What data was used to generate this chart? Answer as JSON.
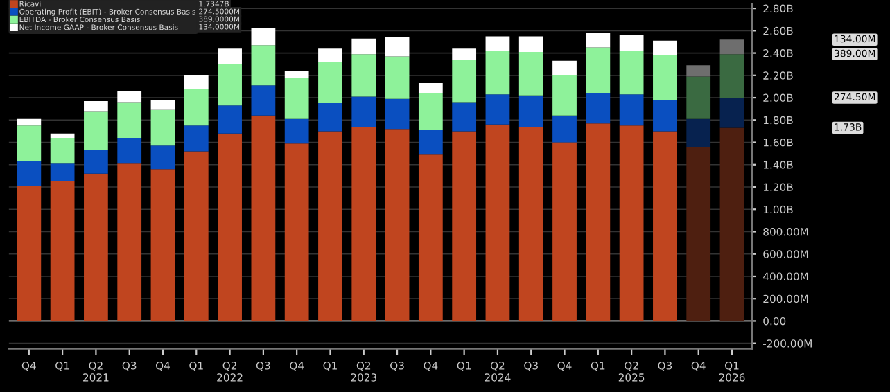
{
  "chart_data": {
    "type": "bar",
    "stacked": true,
    "legend": "top left",
    "grid": "y",
    "categories": [
      "Q4",
      "Q1",
      "Q2\n2021",
      "Q3",
      "Q4",
      "Q1",
      "Q2\n2022",
      "Q3",
      "Q4",
      "Q1",
      "Q2\n2023",
      "Q3",
      "Q4",
      "Q1",
      "Q2\n2024",
      "Q3",
      "Q4",
      "Q1",
      "Q2\n2025",
      "Q3",
      "Q4",
      "Q1\n2026"
    ],
    "series": [
      {
        "name": "Ricavi",
        "color": "#c0451f",
        "colors": [
          "#c0451f",
          "#c0451f",
          "#c0451f",
          "#c0451f",
          "#c0451f",
          "#c0451f",
          "#c0451f",
          "#c0451f",
          "#c0451f",
          "#c0451f",
          "#c0451f",
          "#c0451f",
          "#c0451f",
          "#c0451f",
          "#c0451f",
          "#c0451f",
          "#c0451f",
          "#c0451f",
          "#c0451f",
          "#c0451f",
          "#4e1f10",
          "#4e1f10"
        ],
        "values": [
          1210000000,
          1250000000,
          1320000000,
          1410000000,
          1360000000,
          1520000000,
          1680000000,
          1840000000,
          1590000000,
          1700000000,
          1740000000,
          1720000000,
          1490000000,
          1700000000,
          1760000000,
          1740000000,
          1600000000,
          1770000000,
          1750000000,
          1700000000,
          1560000000,
          1730000000
        ]
      },
      {
        "name": "Operating Profit (EBIT) - Broker Consensus Basis",
        "color": "#0a4fc0",
        "colors": [
          "#0a4fc0",
          "#0a4fc0",
          "#0a4fc0",
          "#0a4fc0",
          "#0a4fc0",
          "#0a4fc0",
          "#0a4fc0",
          "#0a4fc0",
          "#0a4fc0",
          "#0a4fc0",
          "#0a4fc0",
          "#0a4fc0",
          "#0a4fc0",
          "#0a4fc0",
          "#0a4fc0",
          "#0a4fc0",
          "#0a4fc0",
          "#0a4fc0",
          "#0a4fc0",
          "#0a4fc0",
          "#07224f",
          "#07224f"
        ],
        "values": [
          220000000,
          160000000,
          210000000,
          230000000,
          210000000,
          230000000,
          250000000,
          270000000,
          220000000,
          250000000,
          270000000,
          270000000,
          220000000,
          260000000,
          270000000,
          280000000,
          240000000,
          270000000,
          280000000,
          280000000,
          250000000,
          270000000
        ]
      },
      {
        "name": "EBITDA - Broker Consensus Basis",
        "color": "#8ef29a",
        "colors": [
          "#8ef29a",
          "#8ef29a",
          "#8ef29a",
          "#8ef29a",
          "#8ef29a",
          "#8ef29a",
          "#8ef29a",
          "#8ef29a",
          "#8ef29a",
          "#8ef29a",
          "#8ef29a",
          "#8ef29a",
          "#8ef29a",
          "#8ef29a",
          "#8ef29a",
          "#8ef29a",
          "#8ef29a",
          "#8ef29a",
          "#8ef29a",
          "#8ef29a",
          "#3a6a41",
          "#3a6a41"
        ],
        "values": [
          320000000,
          230000000,
          350000000,
          320000000,
          320000000,
          330000000,
          370000000,
          360000000,
          370000000,
          370000000,
          380000000,
          380000000,
          330000000,
          380000000,
          390000000,
          390000000,
          360000000,
          410000000,
          390000000,
          400000000,
          380000000,
          390000000
        ]
      },
      {
        "name": "Net Income GAAP - Broker Consensus Basis",
        "color": "#ffffff",
        "colors": [
          "#ffffff",
          "#ffffff",
          "#ffffff",
          "#ffffff",
          "#ffffff",
          "#ffffff",
          "#ffffff",
          "#ffffff",
          "#ffffff",
          "#ffffff",
          "#ffffff",
          "#ffffff",
          "#ffffff",
          "#ffffff",
          "#ffffff",
          "#ffffff",
          "#ffffff",
          "#ffffff",
          "#ffffff",
          "#ffffff",
          "#6e6e6e",
          "#6e6e6e"
        ],
        "values": [
          60000000,
          40000000,
          90000000,
          100000000,
          90000000,
          120000000,
          140000000,
          150000000,
          60000000,
          120000000,
          140000000,
          170000000,
          90000000,
          100000000,
          130000000,
          140000000,
          130000000,
          130000000,
          140000000,
          130000000,
          100000000,
          130000000
        ]
      }
    ],
    "ylim": [
      -250000000,
      2840000000
    ],
    "yticks": [
      {
        "value": 2800000000,
        "label": "2.80B"
      },
      {
        "value": 2600000000,
        "label": "2.60B"
      },
      {
        "value": 2400000000,
        "label": "2.40B"
      },
      {
        "value": 2200000000,
        "label": "2.20B"
      },
      {
        "value": 2000000000,
        "label": "2.00B"
      },
      {
        "value": 1800000000,
        "label": "1.80B"
      },
      {
        "value": 1600000000,
        "label": "1.60B"
      },
      {
        "value": 1400000000,
        "label": "1.40B"
      },
      {
        "value": 1200000000,
        "label": "1.20B"
      },
      {
        "value": 1000000000,
        "label": "1.00B"
      },
      {
        "value": 800000000,
        "label": "800.00M"
      },
      {
        "value": 600000000,
        "label": "600.00M"
      },
      {
        "value": 400000000,
        "label": "400.00M"
      },
      {
        "value": 200000000,
        "label": "200.00M"
      },
      {
        "value": 0,
        "label": "0.00"
      },
      {
        "value": -200000000,
        "label": "-200.00M"
      }
    ],
    "annotations": [
      "1.7347B",
      "274.5000M",
      "389.0000M",
      "134.0000M",
      "1.73B",
      "274.50M",
      "389.00M",
      "134.00M"
    ]
  }
}
